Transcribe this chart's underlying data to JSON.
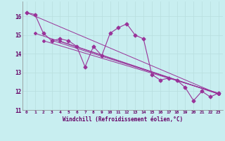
{
  "bg_color": "#c8eef0",
  "grid_color": "#b8dede",
  "line_color": "#993399",
  "xlim": [
    -0.5,
    23.5
  ],
  "ylim": [
    11.0,
    16.8
  ],
  "yticks": [
    11,
    12,
    13,
    14,
    15,
    16
  ],
  "xticks": [
    0,
    1,
    2,
    3,
    4,
    5,
    6,
    7,
    8,
    9,
    10,
    11,
    12,
    13,
    14,
    15,
    16,
    17,
    18,
    19,
    20,
    21,
    22,
    23
  ],
  "main_series": [
    16.2,
    16.1,
    15.1,
    14.7,
    14.8,
    14.7,
    14.4,
    13.3,
    14.4,
    13.9,
    15.1,
    15.4,
    15.6,
    15.0,
    14.8,
    12.9,
    12.6,
    12.7,
    12.6,
    12.2,
    11.5,
    12.0,
    11.7,
    11.9
  ],
  "trend_lines": [
    {
      "x0": 0,
      "y0": 16.2,
      "x1": 23,
      "y1": 11.85
    },
    {
      "x0": 1,
      "y0": 15.1,
      "x1": 23,
      "y1": 11.85
    },
    {
      "x0": 2,
      "y0": 14.7,
      "x1": 23,
      "y1": 11.85
    },
    {
      "x0": 3,
      "y0": 14.7,
      "x1": 23,
      "y1": 11.85
    },
    {
      "x0": 4,
      "y0": 14.7,
      "x1": 23,
      "y1": 11.85
    }
  ],
  "xlabel": "Windchill (Refroidissement éolien,°C)"
}
